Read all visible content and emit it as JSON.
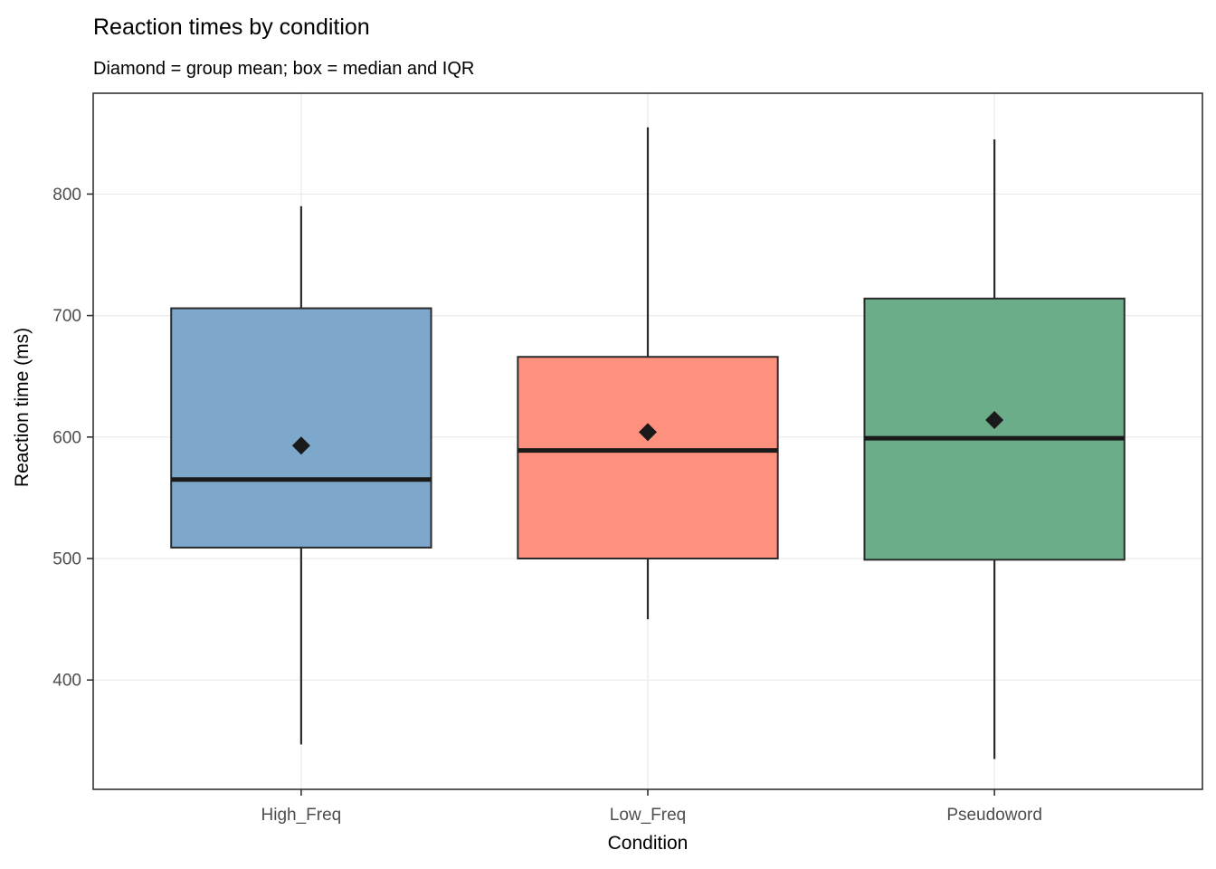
{
  "chart_data": {
    "type": "boxplot",
    "title": "Reaction times by condition",
    "subtitle": "Diamond = group mean; box = median and IQR",
    "xlabel": "Condition",
    "ylabel": "Reaction time (ms)",
    "categories": [
      "High_Freq",
      "Low_Freq",
      "Pseudoword"
    ],
    "series": [
      {
        "name": "High_Freq",
        "whisker_low": 347,
        "q1": 509,
        "median": 565,
        "q3": 706,
        "whisker_high": 790,
        "mean": 593,
        "fill": "#7DA7CB"
      },
      {
        "name": "Low_Freq",
        "whisker_low": 450,
        "q1": 500,
        "median": 589,
        "q3": 666,
        "whisker_high": 855,
        "mean": 604,
        "fill": "#FE917E"
      },
      {
        "name": "Pseudoword",
        "whisker_low": 335,
        "q1": 499,
        "median": 599,
        "q3": 714,
        "whisker_high": 845,
        "mean": 614,
        "fill": "#6CAD89"
      }
    ],
    "yticks": [
      400,
      500,
      600,
      700,
      800
    ],
    "ylim": [
      310,
      883
    ],
    "legend": "none",
    "grid": {
      "horizontal_major": true,
      "vertical_major": true,
      "minor": false,
      "color": "#EBEBEB"
    },
    "style": {
      "box_border_color": "#2B2B2B",
      "median_color": "#1A1A1A",
      "whisker_color": "#2B2B2B",
      "mean_marker": "diamond",
      "mean_marker_color": "#1A1A1A",
      "panel_border_color": "#333333",
      "tick_color": "#333333",
      "tick_label_color": "#4D4D4D"
    }
  }
}
